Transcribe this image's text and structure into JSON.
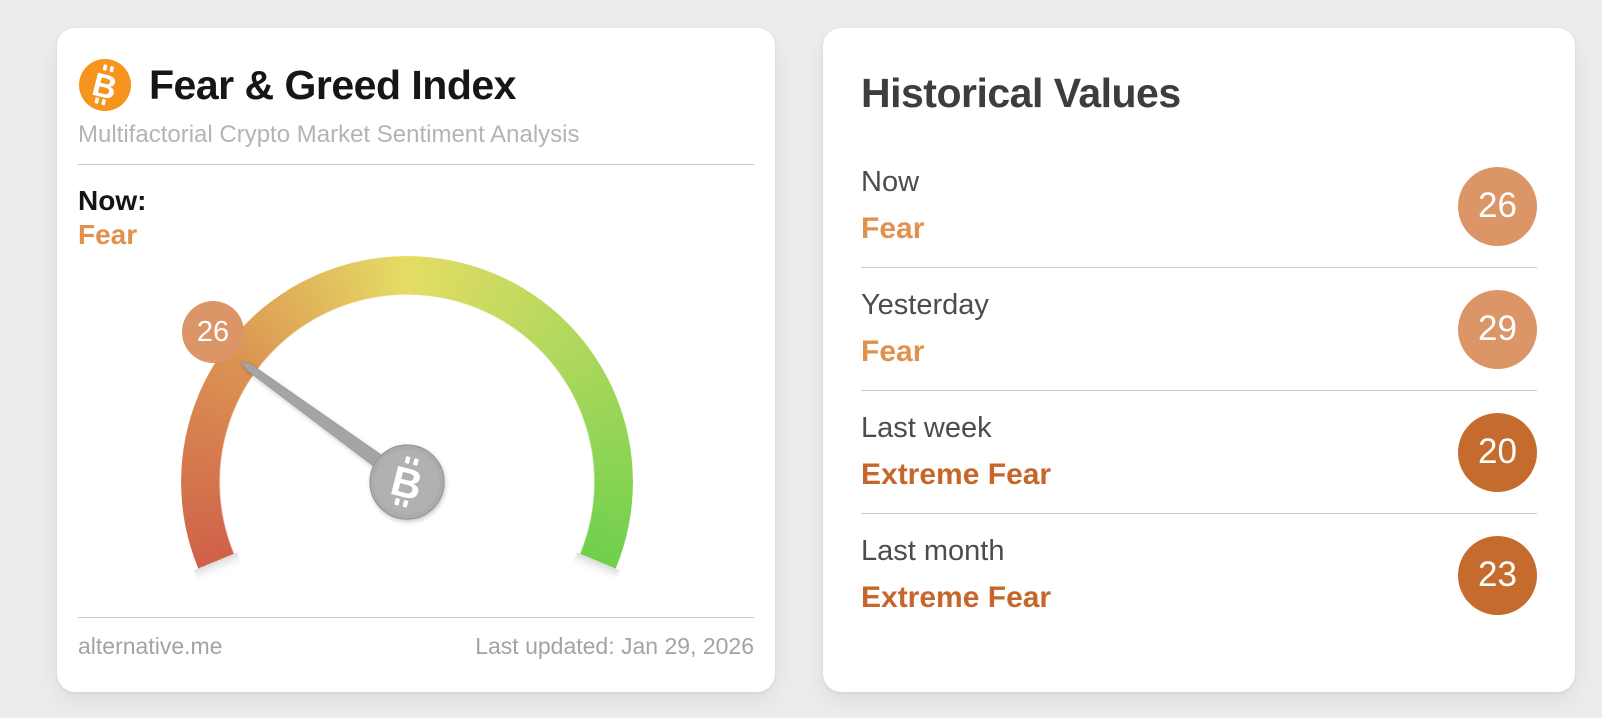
{
  "colors": {
    "fear": "#e0914e",
    "extreme_fear": "#c7662b",
    "badge_fear": "#dc9566",
    "badge_extreme_fear": "#c56b2e",
    "bitcoin_orange": "#f7941e",
    "needle_gray": "#a4a4a4",
    "hub_gray": "#ababab",
    "scale_red": "#cf6149",
    "scale_orange": "#dc9352",
    "scale_yellow": "#e5dc64",
    "scale_yellowgreen": "#a8d75c",
    "scale_green": "#6fd04c"
  },
  "index_card": {
    "title": "Fear & Greed Index",
    "subtitle": "Multifactorial Crypto Market Sentiment Analysis",
    "now_label": "Now:",
    "now_sentiment": "Fear",
    "gauge_badge": "26",
    "source": "alternative.me",
    "last_updated": "Last updated: Jan 29, 2026"
  },
  "historical_card": {
    "title": "Historical Values",
    "rows": [
      {
        "label": "Now",
        "sentiment": "Fear",
        "value": "26",
        "tone": "fear"
      },
      {
        "label": "Yesterday",
        "sentiment": "Fear",
        "value": "29",
        "tone": "fear"
      },
      {
        "label": "Last week",
        "sentiment": "Extreme Fear",
        "value": "20",
        "tone": "extreme-fear"
      },
      {
        "label": "Last month",
        "sentiment": "Extreme Fear",
        "value": "23",
        "tone": "extreme-fear"
      }
    ]
  },
  "chart_data": {
    "type": "gauge",
    "title": "Fear & Greed Index",
    "value": 26,
    "min": 0,
    "max": 100,
    "classification": "Fear",
    "start_angle_deg": 202.5,
    "sweep_deg": 225,
    "scale_colors": [
      "#cf6149",
      "#dc9352",
      "#e5dc64",
      "#a8d75c",
      "#6fd04c"
    ],
    "historical": [
      {
        "period": "Now",
        "classification": "Fear",
        "value": 26
      },
      {
        "period": "Yesterday",
        "classification": "Fear",
        "value": 29
      },
      {
        "period": "Last week",
        "classification": "Extreme Fear",
        "value": 20
      },
      {
        "period": "Last month",
        "classification": "Extreme Fear",
        "value": 23
      }
    ]
  }
}
